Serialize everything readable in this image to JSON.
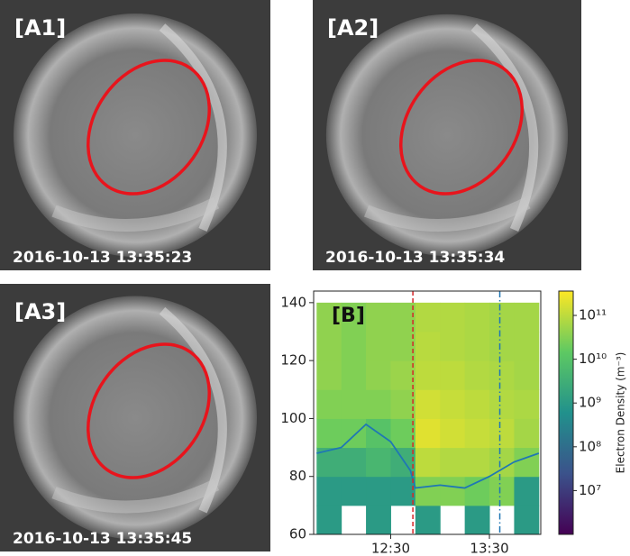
{
  "panels": [
    {
      "label": "[A1]",
      "timestamp": "2016-10-13 13:35:23"
    },
    {
      "label": "[A2]",
      "timestamp": "2016-10-13 13:35:34"
    },
    {
      "label": "[A3]",
      "timestamp": "2016-10-13 13:35:45"
    }
  ],
  "chart_data": {
    "type": "heatmap",
    "label": "[B]",
    "x_edges": [
      11.75,
      12.0,
      12.25,
      12.5,
      12.75,
      13.0,
      13.25,
      13.5,
      13.75,
      14.0
    ],
    "y_edges": [
      60,
      70,
      80,
      90,
      100,
      110,
      120,
      130,
      140
    ],
    "values": [
      [
        1000000000.0,
        null,
        1000000000.0,
        null,
        1000000000.0,
        null,
        1000000000.0,
        null,
        1000000000.0
      ],
      [
        1000000000.0,
        1000000000.0,
        1000000000.0,
        1000000000.0,
        30000000000.0,
        30000000000.0,
        20000000000.0,
        30000000000.0,
        1000000000.0
      ],
      [
        3000000000.0,
        3000000000.0,
        5000000000.0,
        3000000000.0,
        100000000000.0,
        80000000000.0,
        80000000000.0,
        60000000000.0,
        30000000000.0
      ],
      [
        20000000000.0,
        20000000000.0,
        10000000000.0,
        20000000000.0,
        200000000000.0,
        150000000000.0,
        120000000000.0,
        100000000000.0,
        60000000000.0
      ],
      [
        30000000000.0,
        30000000000.0,
        30000000000.0,
        40000000000.0,
        150000000000.0,
        120000000000.0,
        100000000000.0,
        80000000000.0,
        70000000000.0
      ],
      [
        40000000000.0,
        30000000000.0,
        40000000000.0,
        50000000000.0,
        100000000000.0,
        100000000000.0,
        80000000000.0,
        70000000000.0,
        60000000000.0
      ],
      [
        40000000000.0,
        30000000000.0,
        40000000000.0,
        40000000000.0,
        90000000000.0,
        80000000000.0,
        70000000000.0,
        60000000000.0,
        60000000000.0
      ],
      [
        40000000000.0,
        30000000000.0,
        40000000000.0,
        40000000000.0,
        80000000000.0,
        80000000000.0,
        70000000000.0,
        60000000000.0,
        60000000000.0
      ]
    ],
    "line": {
      "color": "#1f77b4",
      "x": [
        11.75,
        12.0,
        12.25,
        12.5,
        12.7,
        12.75,
        13.0,
        13.25,
        13.5,
        13.75,
        14.0
      ],
      "y": [
        88,
        90,
        98,
        92,
        82,
        76,
        77,
        76,
        80,
        85,
        88
      ]
    },
    "markers": [
      {
        "x": 12.725,
        "color": "#d62728",
        "style": "dashed"
      },
      {
        "x": 13.605,
        "color": "#1f77b4",
        "style": "dashdot"
      }
    ],
    "xlim": [
      11.72,
      14.02
    ],
    "xticks": [
      {
        "value": 12.5,
        "label": "12:30"
      },
      {
        "value": 13.5,
        "label": "13:30"
      }
    ],
    "ylim": [
      60,
      144
    ],
    "yticks": [
      60,
      80,
      100,
      120,
      140
    ],
    "colorbar": {
      "label": "Electron Density (m⁻³)",
      "scale": "log",
      "clim": [
        1000000,
        360000000000
      ],
      "ticks": [
        {
          "value": 10000000,
          "label": "10⁷"
        },
        {
          "value": 100000000,
          "label": "10⁸"
        },
        {
          "value": 1000000000,
          "label": "10⁹"
        },
        {
          "value": 10000000000,
          "label": "10¹⁰"
        },
        {
          "value": 100000000000,
          "label": "10¹¹"
        }
      ]
    }
  }
}
